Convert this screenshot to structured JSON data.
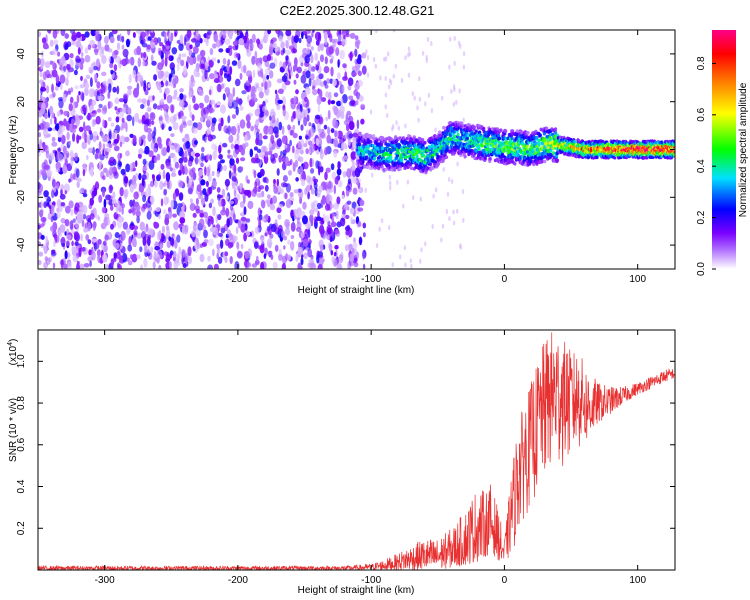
{
  "chart_data": [
    {
      "type": "heatmap",
      "title": "C2E2.2025.300.12.48.G21",
      "xlabel": "Height of straight line (km)",
      "ylabel": "Frequency (Hz)",
      "xlim": [
        -350,
        128
      ],
      "ylim": [
        -50,
        50
      ],
      "xticks": [
        -300,
        -200,
        -100,
        0,
        100
      ],
      "yticks": [
        -40,
        -20,
        0,
        20,
        40
      ],
      "colorbar": {
        "label": "Normalized spectral amplitude",
        "range": [
          0,
          0.93
        ],
        "ticks": [
          0.0,
          0.2,
          0.4,
          0.6,
          0.8
        ],
        "colors": [
          "#ffffff",
          "#8a00ff",
          "#0000ff",
          "#00e0ff",
          "#00ff00",
          "#ffff00",
          "#ff8000",
          "#ff0000",
          "#ff00aa"
        ]
      },
      "noise_region": {
        "x_range": [
          -350,
          -105
        ],
        "level": 0.12
      },
      "signal_trace": {
        "description_points_x": [
          -110,
          -90,
          -70,
          -60,
          -50,
          -40,
          -30,
          -20,
          -10,
          0,
          10,
          20,
          30,
          40,
          50,
          60,
          80,
          100,
          128
        ],
        "center_freq": [
          0,
          -2,
          -1,
          -3,
          0,
          5,
          4,
          3,
          2,
          1,
          1,
          0,
          2,
          2,
          1,
          0,
          0,
          0,
          0
        ],
        "peak_amplitude": [
          0.35,
          0.4,
          0.45,
          0.5,
          0.4,
          0.45,
          0.4,
          0.45,
          0.5,
          0.5,
          0.5,
          0.5,
          0.55,
          0.6,
          0.65,
          0.75,
          0.85,
          0.9,
          0.9
        ]
      }
    },
    {
      "type": "line",
      "ylabel": "SNR (10 * v/v)",
      "scale_label": "(x10",
      "scale_exp": "4",
      "xlabel": "Height of straight line (km)",
      "xlim": [
        -350,
        128
      ],
      "ylim": [
        0,
        1.15
      ],
      "xticks": [
        -300,
        -200,
        -100,
        0,
        100
      ],
      "yticks": [
        0.2,
        0.4,
        0.6,
        0.8,
        1.0
      ],
      "series": [
        {
          "name": "SNR",
          "color": "#e83030",
          "x": [
            -350,
            -300,
            -200,
            -120,
            -100,
            -90,
            -80,
            -70,
            -60,
            -50,
            -40,
            -30,
            -25,
            -20,
            -15,
            -10,
            -5,
            0,
            5,
            10,
            15,
            20,
            25,
            30,
            35,
            40,
            45,
            50,
            55,
            60,
            65,
            70,
            80,
            90,
            100,
            110,
            120,
            128
          ],
          "envelope_low": [
            0.0,
            0.0,
            0.0,
            0.0,
            0.0,
            0.0,
            0.0,
            0.0,
            0.0,
            0.0,
            0.01,
            0.02,
            0.03,
            0.04,
            0.06,
            0.08,
            0.05,
            0.02,
            0.05,
            0.15,
            0.25,
            0.3,
            0.35,
            0.4,
            0.45,
            0.45,
            0.5,
            0.5,
            0.55,
            0.6,
            0.65,
            0.7,
            0.75,
            0.8,
            0.84,
            0.87,
            0.9,
            0.92
          ],
          "envelope_high": [
            0.02,
            0.02,
            0.02,
            0.02,
            0.03,
            0.05,
            0.08,
            0.12,
            0.15,
            0.15,
            0.2,
            0.28,
            0.35,
            0.4,
            0.38,
            0.42,
            0.3,
            0.15,
            0.45,
            0.7,
            0.8,
            0.9,
            1.0,
            1.1,
            1.15,
            1.15,
            1.1,
            1.05,
            1.05,
            1.0,
            0.95,
            0.9,
            0.88,
            0.88,
            0.9,
            0.93,
            0.96,
            0.97
          ]
        }
      ]
    }
  ]
}
